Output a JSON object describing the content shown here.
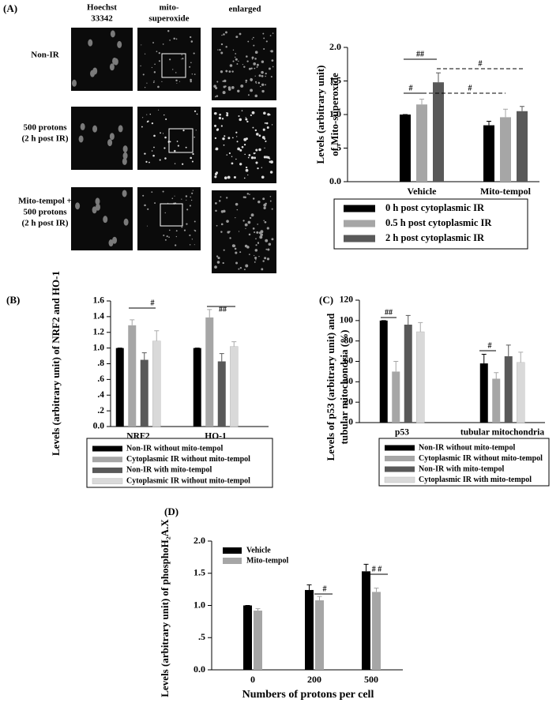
{
  "panel_labels": [
    "(A)",
    "(B)",
    "(C)",
    "(D)"
  ],
  "microscopy": {
    "columns": [
      [
        "Hoechst",
        "33342"
      ],
      [
        "mito-",
        "superoxide"
      ],
      [
        "enlarged"
      ]
    ],
    "rows": [
      [
        "Non-IR"
      ],
      [
        "500 protons",
        "(2 h post IR)"
      ],
      [
        "Mito-tempol +",
        "500 protons",
        "(2 h post IR)"
      ]
    ]
  },
  "chart_data": [
    {
      "type": "bar",
      "y_label": [
        "Levels (arbitrary unit)",
        "of Mito-superoxide"
      ],
      "categories": [
        "Vehicle",
        "Mito-tempol"
      ],
      "series": [
        {
          "name": "0 h post cytoplasmic IR",
          "color": "#000000",
          "values": [
            1.0,
            0.84
          ],
          "errors": [
            0,
            0.06
          ]
        },
        {
          "name": "0.5 h post cytoplasmic IR",
          "color": "#a6a6a6",
          "values": [
            1.15,
            0.96
          ],
          "errors": [
            0.08,
            0.12
          ]
        },
        {
          "name": "2 h  post cytoplasmic IR",
          "color": "#595959",
          "values": [
            1.48,
            1.05
          ],
          "errors": [
            0.14,
            0.07
          ]
        }
      ],
      "ylim": [
        0,
        2
      ],
      "yticks": [
        {
          "value": 0,
          "label": "0.0"
        },
        {
          "value": 0.5,
          "label": ".5"
        },
        {
          "value": 1,
          "label": "1.0"
        },
        1.5,
        {
          "value": 2,
          "label": "2.0"
        }
      ],
      "annotations": [
        "##",
        "#",
        "#",
        "#"
      ]
    },
    {
      "type": "bar",
      "y_label": [
        "Levels (arbitrary unit) of NRF2 and HO-1"
      ],
      "categories": [
        "NRF2",
        "HO-1"
      ],
      "series": [
        {
          "name": "Non-IR without mito-tempol",
          "color": "#000000",
          "values": [
            1.0,
            1.0
          ],
          "errors": [
            0,
            0
          ]
        },
        {
          "name": "Cytoplasmic IR without mito-tempol",
          "color": "#a6a6a6",
          "values": [
            1.29,
            1.39
          ],
          "errors": [
            0.07,
            0.1
          ]
        },
        {
          "name": "Non-IR with mito-tempol",
          "color": "#595959",
          "values": [
            0.85,
            0.83
          ],
          "errors": [
            0.09,
            0.1
          ]
        },
        {
          "name": "Cytoplasmic IR without mito-tempol",
          "color": "#d9d9d9",
          "values": [
            1.09,
            1.02
          ],
          "errors": [
            0.13,
            0.06
          ]
        }
      ],
      "ylim": [
        0,
        1.6
      ],
      "yticks": [
        {
          "value": 0,
          "label": "0.0"
        },
        {
          "value": 0.2,
          "label": ".2"
        },
        {
          "value": 0.4,
          "label": ".4"
        },
        {
          "value": 0.6,
          "label": ".6"
        },
        {
          "value": 0.8,
          "label": ".8"
        },
        {
          "value": 1,
          "label": "1.0"
        },
        1.2,
        1.4,
        1.6
      ],
      "annotations": [
        "#",
        "##"
      ]
    },
    {
      "type": "bar",
      "y_label": [
        "Levels of p53 (arbitrary unit) and",
        "tubular mitochondria (%)"
      ],
      "categories": [
        "p53",
        "tubular mitochondria"
      ],
      "series": [
        {
          "name": "Non-IR without mito-tempol",
          "color": "#000000",
          "values": [
            100,
            58
          ],
          "errors": [
            0,
            9
          ]
        },
        {
          "name": "Cytoplasmic IR without mito-tempol",
          "color": "#a6a6a6",
          "values": [
            50,
            43
          ],
          "errors": [
            10,
            6
          ]
        },
        {
          "name": "Non-IR with mito-tempol",
          "color": "#595959",
          "values": [
            96,
            65
          ],
          "errors": [
            9,
            11
          ]
        },
        {
          "name": "Cytoplasmic IR with mito-tempol",
          "color": "#d9d9d9",
          "values": [
            89,
            59
          ],
          "errors": [
            9,
            10
          ]
        }
      ],
      "ylim": [
        0,
        120
      ],
      "yticks": [
        0,
        20,
        40,
        60,
        80,
        100,
        120
      ],
      "annotations": [
        "##",
        "#"
      ]
    },
    {
      "type": "bar",
      "y_label": [
        "Levels (arbitrary unit) of phosphoH₂A.X"
      ],
      "x_label": "Numbers of protons per cell",
      "categories": [
        "0",
        "200",
        "500"
      ],
      "series": [
        {
          "name": "Vehicle",
          "color": "#000000",
          "values": [
            1.0,
            1.24,
            1.53
          ],
          "errors": [
            0,
            0.08,
            0.11
          ]
        },
        {
          "name": "Mito-tempol",
          "color": "#a6a6a6",
          "values": [
            0.92,
            1.08,
            1.21
          ],
          "errors": [
            0.03,
            0.06,
            0.06
          ]
        }
      ],
      "ylim": [
        0,
        2
      ],
      "yticks": [
        {
          "value": 0,
          "label": "0.0"
        },
        {
          "value": 0.5,
          "label": ".5"
        },
        {
          "value": 1,
          "label": "1.0"
        },
        1.5,
        {
          "value": 2,
          "label": "2.0"
        }
      ],
      "annotations": [
        "#",
        "# #"
      ]
    }
  ]
}
